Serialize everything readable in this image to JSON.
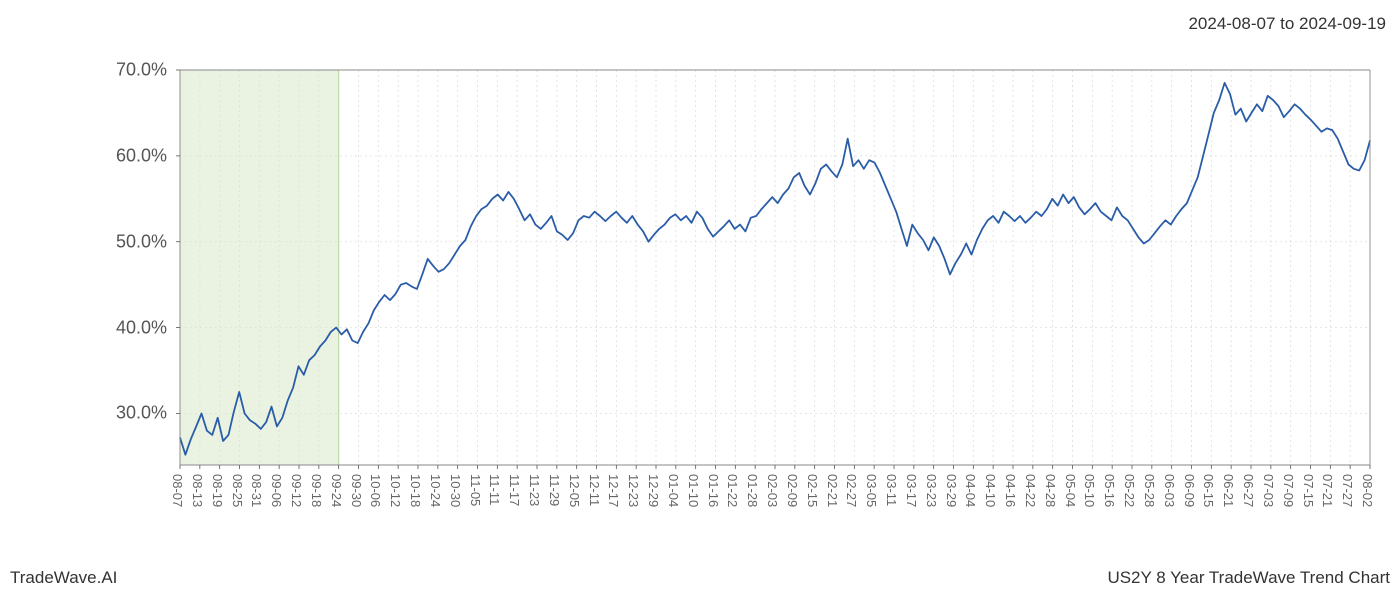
{
  "header": {
    "date_range": "2024-08-07 to 2024-09-19"
  },
  "footer": {
    "left": "TradeWave.AI",
    "right": "US2Y 8 Year TradeWave Trend Chart"
  },
  "chart": {
    "type": "line",
    "background_color": "#ffffff",
    "plot_background_color": "#ffffff",
    "line_color": "#2a5da8",
    "line_width": 1.8,
    "highlight_band": {
      "start_index": 0,
      "end_index": 8,
      "fill_color": "#d9e8cb",
      "fill_opacity": 0.55,
      "border_color": "#b8d4a0"
    },
    "grid": {
      "show_vertical": true,
      "show_horizontal": true,
      "line_color": "#dddddd",
      "line_dash": "2,3",
      "line_width": 0.8
    },
    "spine_color": "#888888",
    "tick_color": "#555555",
    "y_axis": {
      "min": 24,
      "max": 70,
      "ticks": [
        30,
        40,
        50,
        60,
        70
      ],
      "tick_labels": [
        "30.0%",
        "40.0%",
        "50.0%",
        "60.0%",
        "70.0%"
      ],
      "label_fontsize": 18,
      "label_color": "#555555"
    },
    "x_axis": {
      "labels": [
        "08-07",
        "08-13",
        "08-19",
        "08-25",
        "08-31",
        "09-06",
        "09-12",
        "09-18",
        "09-24",
        "09-30",
        "10-06",
        "10-12",
        "10-18",
        "10-24",
        "10-30",
        "11-05",
        "11-11",
        "11-17",
        "11-23",
        "11-29",
        "12-05",
        "12-11",
        "12-17",
        "12-23",
        "12-29",
        "01-04",
        "01-10",
        "01-16",
        "01-22",
        "01-28",
        "02-03",
        "02-09",
        "02-15",
        "02-21",
        "02-27",
        "03-05",
        "03-11",
        "03-17",
        "03-23",
        "03-29",
        "04-04",
        "04-10",
        "04-16",
        "04-22",
        "04-28",
        "05-04",
        "05-10",
        "05-16",
        "05-22",
        "05-28",
        "06-03",
        "06-09",
        "06-15",
        "06-21",
        "06-27",
        "07-03",
        "07-09",
        "07-15",
        "07-21",
        "07-27",
        "08-02"
      ],
      "label_fontsize": 13,
      "label_color": "#666666",
      "label_rotation": 90
    },
    "series": {
      "name": "US2Y",
      "values": [
        27.2,
        25.2,
        27.0,
        28.5,
        30.0,
        28.0,
        27.5,
        29.5,
        26.8,
        27.5,
        30.2,
        32.5,
        30.0,
        29.2,
        28.8,
        28.2,
        29.0,
        30.8,
        28.5,
        29.5,
        31.5,
        33.0,
        35.5,
        34.5,
        36.2,
        36.8,
        37.8,
        38.5,
        39.5,
        40.0,
        39.2,
        39.8,
        38.5,
        38.2,
        39.5,
        40.5,
        42.0,
        43.0,
        43.8,
        43.2,
        43.9,
        45.0,
        45.2,
        44.8,
        44.5,
        46.2,
        48.0,
        47.2,
        46.5,
        46.8,
        47.5,
        48.5,
        49.5,
        50.2,
        51.8,
        53.0,
        53.8,
        54.2,
        55.0,
        55.5,
        54.8,
        55.8,
        55.0,
        53.8,
        52.5,
        53.2,
        52.0,
        51.5,
        52.2,
        53.0,
        51.2,
        50.8,
        50.2,
        51.0,
        52.5,
        53.0,
        52.8,
        53.5,
        53.0,
        52.4,
        53.0,
        53.5,
        52.8,
        52.2,
        53.0,
        52.0,
        51.2,
        50.0,
        50.8,
        51.5,
        52.0,
        52.8,
        53.2,
        52.5,
        53.0,
        52.2,
        53.5,
        52.8,
        51.5,
        50.6,
        51.2,
        51.8,
        52.5,
        51.5,
        52.0,
        51.2,
        52.8,
        53.0,
        53.8,
        54.5,
        55.2,
        54.5,
        55.5,
        56.2,
        57.5,
        58.0,
        56.5,
        55.5,
        56.8,
        58.5,
        59.0,
        58.2,
        57.5,
        59.0,
        62.0,
        58.8,
        59.5,
        58.5,
        59.5,
        59.2,
        58.0,
        56.5,
        55.0,
        53.5,
        51.5,
        49.5,
        52.0,
        51.0,
        50.2,
        49.0,
        50.5,
        49.5,
        48.0,
        46.2,
        47.5,
        48.5,
        49.8,
        48.5,
        50.2,
        51.5,
        52.5,
        53.0,
        52.2,
        53.5,
        53.0,
        52.4,
        53.0,
        52.2,
        52.8,
        53.5,
        53.0,
        53.8,
        55.0,
        54.2,
        55.5,
        54.5,
        55.2,
        54.0,
        53.2,
        53.8,
        54.5,
        53.5,
        53.0,
        52.5,
        54.0,
        53.0,
        52.5,
        51.5,
        50.5,
        49.8,
        50.2,
        51.0,
        51.8,
        52.5,
        52.0,
        53.0,
        53.8,
        54.5,
        56.0,
        57.5,
        60.0,
        62.5,
        65.0,
        66.5,
        68.5,
        67.2,
        64.8,
        65.5,
        64.0,
        65.0,
        66.0,
        65.2,
        67.0,
        66.5,
        65.8,
        64.5,
        65.2,
        66.0,
        65.5,
        64.8,
        64.2,
        63.5,
        62.8,
        63.2,
        63.0,
        62.0,
        60.5,
        59.0,
        58.5,
        58.3,
        59.5,
        61.8
      ]
    }
  }
}
